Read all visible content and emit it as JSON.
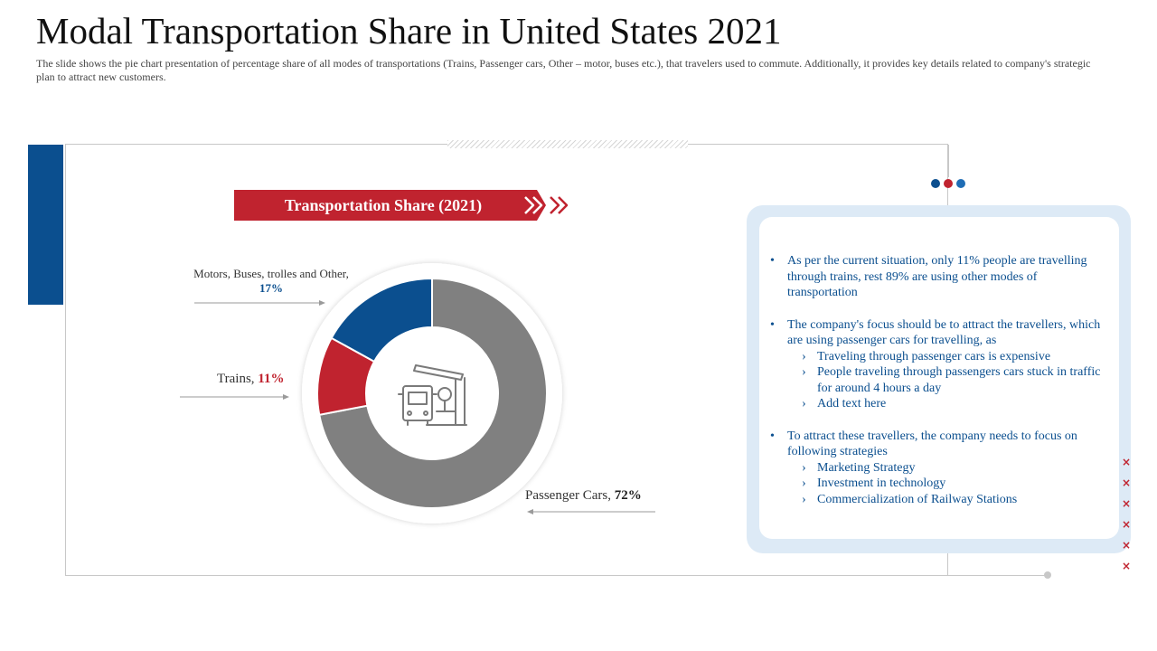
{
  "header": {
    "title": "Modal Transportation Share in United States 2021",
    "subtitle": "The slide shows the pie chart presentation of percentage share of all modes of transportations (Trains, Passenger cars, Other – motor, buses etc.), that travelers used to commute. Additionally, it provides key details related to company's strategic plan to attract new customers."
  },
  "banner": {
    "title": "Transportation Share (2021)",
    "icon": "double-chevron-right-icon"
  },
  "colors": {
    "accent_red": "#c0232f",
    "accent_blue": "#0b4f8f",
    "accent_gray": "#808080",
    "dot_colors": [
      "#0b4f8f",
      "#c0232f",
      "#1f6db5"
    ]
  },
  "chart_data": {
    "type": "pie",
    "variant": "donut",
    "title": "Transportation Share (2021)",
    "start": "12 o'clock, clockwise",
    "slices": [
      {
        "name": "Passenger Cars",
        "label": "Passenger Cars,",
        "value": 72,
        "value_label": "72%",
        "color": "#808080"
      },
      {
        "name": "Trains",
        "label": "Trains,",
        "value": 11,
        "value_label": "11%",
        "color": "#c0232f"
      },
      {
        "name": "Motors, Buses, trolles and Other",
        "label": "Motors, Buses, trolles and Other,",
        "value": 17,
        "value_label": "17%",
        "color": "#0b4f8f"
      }
    ],
    "center_icon": "bus-stop-icon"
  },
  "panel": {
    "bullets": [
      {
        "text": "As per the current situation, only 11% people are travelling through trains, rest 89% are using other modes of transportation",
        "sub": []
      },
      {
        "text": "The company's focus should be to attract the travellers, which are using passenger cars for travelling, as",
        "sub": [
          "Traveling through passenger cars is expensive",
          "People traveling through passengers cars stuck in traffic for around 4 hours a day",
          "Add text here"
        ]
      },
      {
        "text": "To attract these travellers, the company needs to focus on following strategies",
        "sub": [
          "Marketing Strategy",
          "Investment in technology",
          "Commercialization of Railway Stations"
        ]
      }
    ],
    "bullet_mark": "•",
    "sub_mark": "›"
  },
  "decor": {
    "x_mark_glyph": "×",
    "x_mark_count": 6
  }
}
